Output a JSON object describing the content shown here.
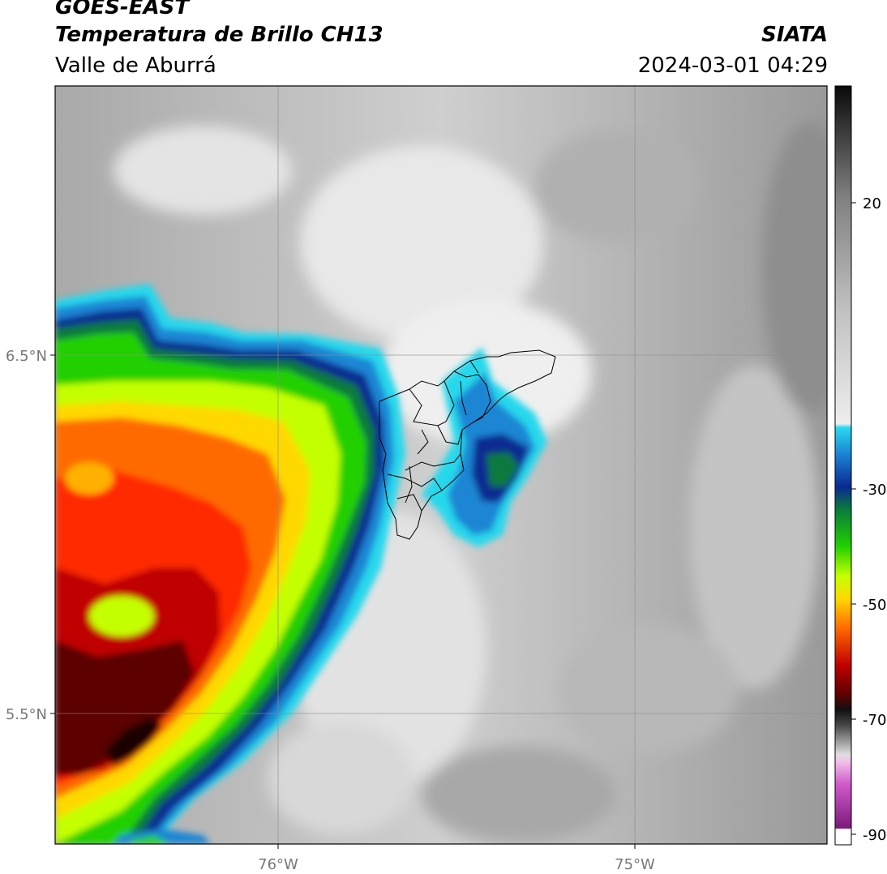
{
  "header": {
    "satellite": "GOES-EAST",
    "product": "Temperatura de Brillo CH13",
    "region": "Valle de Aburrá",
    "source": "SIATA",
    "datetime": "2024-03-01 04:29"
  },
  "axes": {
    "lat_ticks": [
      {
        "label": "6.5°N",
        "value": 6.5
      },
      {
        "label": "5.5°N",
        "value": 5.5
      }
    ],
    "lon_ticks": [
      {
        "label": "76°W",
        "value": -76
      },
      {
        "label": "75°W",
        "value": -75
      }
    ]
  },
  "colorbar": {
    "ticks": [
      {
        "label": "20",
        "value": 20
      },
      {
        "label": "-30",
        "value": -30
      },
      {
        "label": "-50",
        "value": -50
      },
      {
        "label": "-70",
        "value": -70
      },
      {
        "label": "-90",
        "value": -90
      }
    ]
  }
}
